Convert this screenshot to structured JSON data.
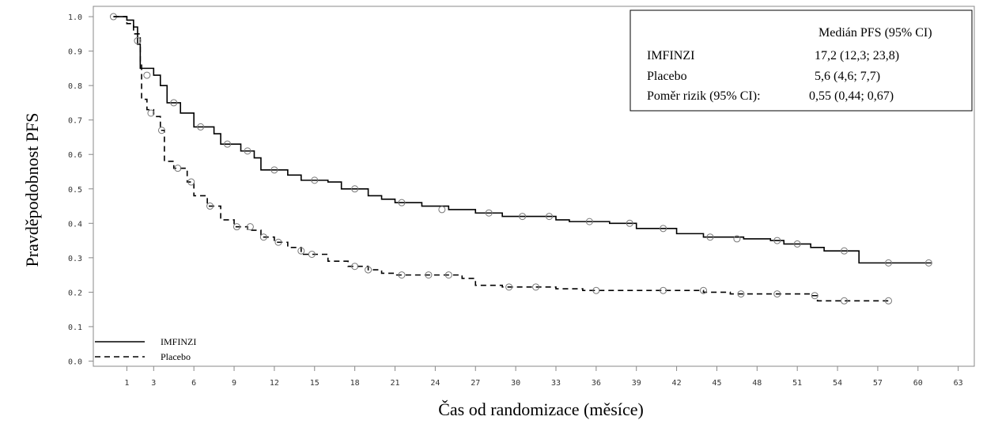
{
  "chart_data": {
    "type": "step",
    "x_label": "Čas od randomizace (měsíce)",
    "y_label": "Pravděpodobnost PFS",
    "xlim": [
      -1.5,
      64.2
    ],
    "ylim": [
      -0.015,
      1.03
    ],
    "xticks": [
      1,
      3,
      6,
      9,
      12,
      15,
      18,
      21,
      24,
      27,
      30,
      33,
      36,
      39,
      42,
      45,
      48,
      51,
      54,
      57,
      60,
      63
    ],
    "yticks": [
      {
        "value": 0,
        "label": "0.0"
      },
      0.1,
      0.2,
      0.3,
      0.4,
      0.5,
      0.6,
      0.7,
      0.8,
      0.9,
      {
        "value": 1,
        "label": "1.0"
      }
    ],
    "legend": "lower left",
    "series": [
      {
        "name": "IMFINZI",
        "color": "#000000",
        "dash": "solid",
        "x": [
          0,
          1,
          1.5,
          1.8,
          2,
          3,
          3.5,
          4,
          5,
          6,
          7.5,
          8,
          9.5,
          10.5,
          11,
          13,
          14,
          16,
          17,
          19,
          20,
          21,
          23,
          25,
          27,
          29,
          33,
          34,
          37,
          39,
          42,
          44,
          47,
          49,
          50,
          52,
          53,
          55.6,
          61
        ],
        "values": [
          1.0,
          0.99,
          0.97,
          0.92,
          0.85,
          0.83,
          0.8,
          0.75,
          0.72,
          0.68,
          0.66,
          0.63,
          0.61,
          0.59,
          0.555,
          0.54,
          0.525,
          0.52,
          0.5,
          0.48,
          0.47,
          0.46,
          0.45,
          0.44,
          0.43,
          0.42,
          0.41,
          0.405,
          0.4,
          0.385,
          0.37,
          0.36,
          0.355,
          0.35,
          0.34,
          0.33,
          0.32,
          0.285,
          0.285
        ],
        "censored_x": [
          0,
          2.5,
          4.5,
          6.5,
          8.5,
          10,
          12,
          15,
          18,
          21.5,
          24.5,
          28,
          30.5,
          32.5,
          35.5,
          38.5,
          41,
          44.5,
          46.5,
          49.5,
          51,
          54.5,
          57.8,
          60.8
        ],
        "censored_values": [
          1.0,
          0.83,
          0.75,
          0.68,
          0.63,
          0.61,
          0.555,
          0.525,
          0.5,
          0.46,
          0.44,
          0.43,
          0.42,
          0.42,
          0.405,
          0.4,
          0.385,
          0.36,
          0.355,
          0.35,
          0.34,
          0.32,
          0.285,
          0.285
        ]
      },
      {
        "name": "Placebo",
        "color": "#000000",
        "dash": "dashed",
        "x": [
          0,
          1,
          1.5,
          2,
          2.1,
          2.5,
          3,
          3.5,
          3.8,
          4.5,
          5.5,
          6,
          7,
          8,
          9,
          10,
          11,
          12,
          13,
          14,
          16,
          17.5,
          19,
          20,
          21,
          26,
          27,
          29,
          33,
          35,
          44,
          46,
          52,
          52.5,
          58
        ],
        "values": [
          1.0,
          0.98,
          0.95,
          0.87,
          0.76,
          0.73,
          0.71,
          0.67,
          0.58,
          0.56,
          0.52,
          0.48,
          0.45,
          0.41,
          0.39,
          0.38,
          0.36,
          0.345,
          0.33,
          0.31,
          0.29,
          0.275,
          0.265,
          0.255,
          0.25,
          0.24,
          0.22,
          0.215,
          0.21,
          0.205,
          0.2,
          0.195,
          0.19,
          0.175,
          0.175
        ],
        "censored_x": [
          1.8,
          2.8,
          3.6,
          4.8,
          5.8,
          7.2,
          9.2,
          10.2,
          11.2,
          12.3,
          14,
          14.8,
          18,
          19,
          21.5,
          23.5,
          25,
          29.5,
          31.5,
          36,
          41,
          44,
          46.8,
          49.5,
          52.3,
          54.5,
          57.8
        ],
        "censored_values": [
          0.93,
          0.72,
          0.67,
          0.56,
          0.52,
          0.45,
          0.39,
          0.39,
          0.36,
          0.345,
          0.32,
          0.31,
          0.275,
          0.265,
          0.25,
          0.25,
          0.25,
          0.215,
          0.215,
          0.205,
          0.205,
          0.205,
          0.195,
          0.195,
          0.19,
          0.175,
          0.175
        ]
      }
    ],
    "stats_table": {
      "header": "Medián PFS (95% CI)",
      "rows": [
        [
          "IMFINZI",
          "17,2 (12,3; 23,8)"
        ],
        [
          "Placebo",
          "5,6 (4,6; 7,7)"
        ],
        [
          "Poměr rizik (95% CI):",
          "0,55 (0,44; 0,67)"
        ]
      ]
    }
  }
}
